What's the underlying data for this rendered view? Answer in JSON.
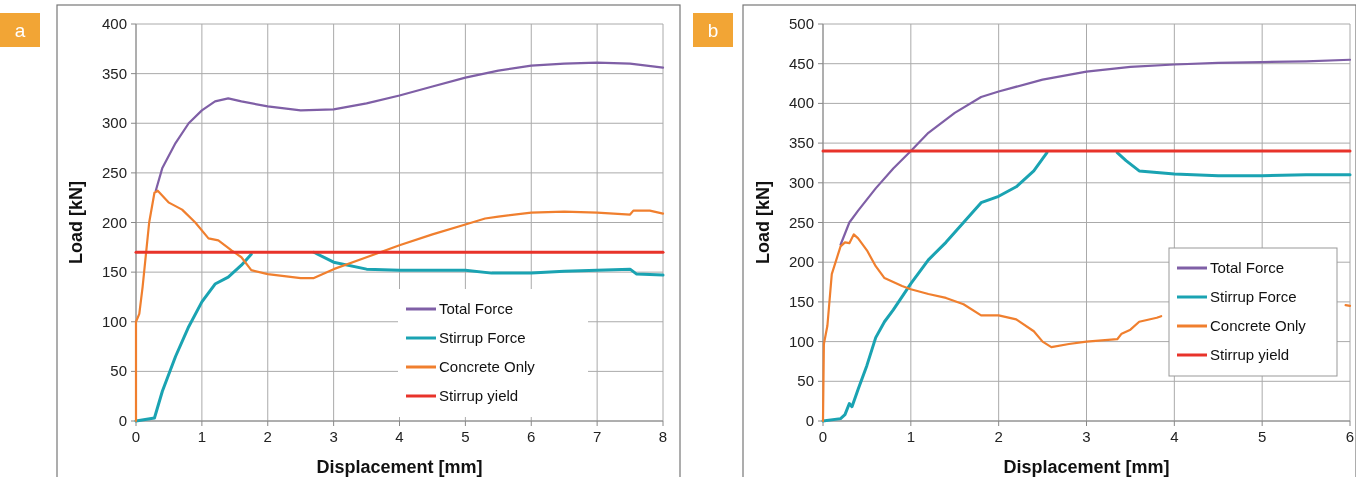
{
  "chart_data": [
    {
      "type": "line",
      "title": "a",
      "xlabel": "Displacement [mm]",
      "ylabel": "Load [kN]",
      "xlim": [
        0,
        8
      ],
      "ylim": [
        0,
        400
      ],
      "xticks": [
        0,
        1,
        2,
        3,
        4,
        5,
        6,
        7,
        8
      ],
      "yticks": [
        0,
        50,
        100,
        150,
        200,
        250,
        300,
        350,
        400
      ],
      "grid": true,
      "legend": "bottom right",
      "marker": "none",
      "line_style": "solid",
      "series": [
        {
          "name": "Total Force",
          "color": "#7f5fa6",
          "x": [
            0.3,
            0.4,
            0.6,
            0.8,
            1,
            1.2,
            1.4,
            1.6,
            2,
            2.5,
            3,
            3.5,
            4,
            4.5,
            5,
            5.5,
            6,
            6.5,
            7,
            7.5,
            8
          ],
          "values": [
            232,
            255,
            280,
            300,
            313,
            322,
            325,
            322,
            317,
            313,
            314,
            320,
            328,
            337,
            346,
            353,
            358,
            360,
            361,
            360,
            356
          ]
        },
        {
          "name": "Stirrup Force",
          "color": "#1aa3b2",
          "x": [
            0,
            0.28,
            0.4,
            0.6,
            0.8,
            1,
            1.2,
            1.4,
            1.6,
            1.75,
            2.2,
            2.7,
            3,
            3.5,
            4,
            5,
            5.4,
            6,
            6.5,
            7,
            7.5,
            7.6,
            8
          ],
          "values": [
            0,
            3,
            30,
            65,
            95,
            120,
            138,
            145,
            157,
            168,
            null,
            170,
            160,
            153,
            152,
            152,
            149,
            149,
            151,
            152,
            153,
            148,
            147
          ]
        },
        {
          "name": "Concrete Only",
          "color": "#f07f2e",
          "x": [
            0,
            0,
            0.05,
            0.1,
            0.2,
            0.28,
            0.33,
            0.5,
            0.7,
            0.9,
            1.1,
            1.25,
            1.45,
            1.6,
            1.75,
            2,
            2.5,
            2.7,
            3,
            3.5,
            4,
            4.5,
            5,
            5.3,
            5.5,
            6,
            6.5,
            7,
            7.5,
            7.55,
            7.8,
            8
          ],
          "values": [
            0,
            100,
            108,
            135,
            200,
            230,
            232,
            220,
            213,
            200,
            184,
            182,
            172,
            165,
            152,
            148,
            144,
            144,
            153,
            165,
            177,
            188,
            198,
            204,
            206,
            210,
            211,
            210,
            208,
            212,
            212,
            209
          ]
        },
        {
          "name": "Stirrup yield",
          "color": "#e8332a",
          "x": [
            0,
            8
          ],
          "values": [
            170,
            170
          ]
        }
      ]
    },
    {
      "type": "line",
      "title": "b",
      "xlabel": "Displacement [mm]",
      "ylabel": "Load [kN]",
      "xlim": [
        0,
        6
      ],
      "ylim": [
        0,
        500
      ],
      "xticks": [
        0,
        1,
        2,
        3,
        4,
        5,
        6
      ],
      "yticks": [
        0,
        50,
        100,
        150,
        200,
        250,
        300,
        350,
        400,
        450,
        500
      ],
      "grid": true,
      "legend": "right",
      "marker": "none",
      "line_style": "solid",
      "series": [
        {
          "name": "Total Force",
          "color": "#7f5fa6",
          "x": [
            0.2,
            0.3,
            0.4,
            0.6,
            0.8,
            1,
            1.2,
            1.5,
            1.8,
            2,
            2.5,
            3,
            3.5,
            4,
            4.5,
            5,
            5.5,
            6
          ],
          "values": [
            222,
            250,
            265,
            293,
            318,
            340,
            363,
            388,
            408,
            415,
            430,
            440,
            446,
            449,
            451,
            452,
            453,
            455
          ]
        },
        {
          "name": "Stirrup Force",
          "color": "#1aa3b2",
          "x": [
            0,
            0.2,
            0.25,
            0.3,
            0.33,
            0.4,
            0.5,
            0.6,
            0.7,
            0.8,
            1,
            1.2,
            1.4,
            1.6,
            1.8,
            2,
            2.2,
            2.4,
            2.55,
            3,
            3.35,
            3.45,
            3.6,
            4,
            4.5,
            5,
            5.5,
            6
          ],
          "values": [
            0,
            3,
            8,
            22,
            18,
            40,
            70,
            105,
            125,
            140,
            173,
            203,
            225,
            250,
            275,
            283,
            295,
            315,
            338,
            null,
            338,
            328,
            315,
            311,
            309,
            309,
            310,
            310
          ]
        },
        {
          "name": "Concrete Only",
          "color": "#f07f2e",
          "x": [
            0,
            0.01,
            0.05,
            0.1,
            0.2,
            0.25,
            0.3,
            0.35,
            0.4,
            0.5,
            0.6,
            0.7,
            0.9,
            1,
            1.2,
            1.4,
            1.6,
            1.8,
            2,
            2.2,
            2.4,
            2.5,
            2.6,
            2.8,
            3,
            3.35,
            3.4,
            3.5,
            3.6,
            3.8,
            3.85,
            4.5,
            5.95,
            6
          ],
          "values": [
            0,
            97,
            120,
            185,
            220,
            225,
            224,
            235,
            230,
            215,
            195,
            180,
            170,
            166,
            160,
            155,
            147,
            133,
            133,
            128,
            113,
            100,
            93,
            97,
            100,
            103,
            110,
            115,
            125,
            130,
            132,
            null,
            146,
            145
          ]
        },
        {
          "name": "Stirrup yield",
          "color": "#e8332a",
          "x": [
            0,
            6
          ],
          "values": [
            340,
            340
          ]
        }
      ]
    }
  ]
}
